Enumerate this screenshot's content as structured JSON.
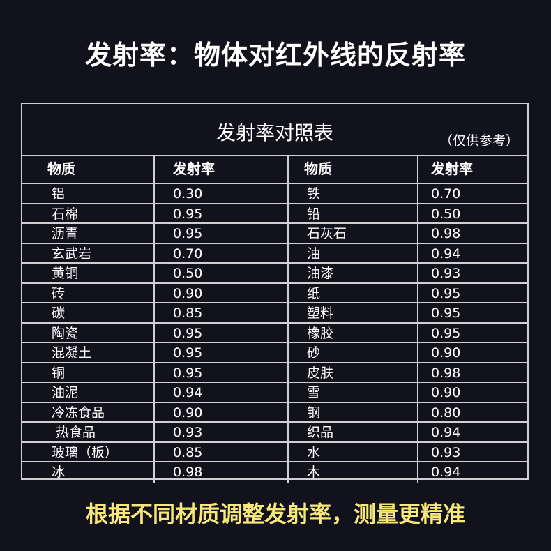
{
  "title": "发射率：物体对红外线的反射率",
  "table": {
    "caption": "发射率对照表",
    "note": "（仅供参考）",
    "headers": [
      "物质",
      "发射率",
      "物质",
      "发射率"
    ],
    "left": [
      {
        "material": "铝",
        "emissivity": "0.30"
      },
      {
        "material": "石棉",
        "emissivity": "0.95"
      },
      {
        "material": "沥青",
        "emissivity": "0.95"
      },
      {
        "material": "玄武岩",
        "emissivity": "0.70"
      },
      {
        "material": "黄铜",
        "emissivity": "0.50"
      },
      {
        "material": "砖",
        "emissivity": "0.90"
      },
      {
        "material": "碳",
        "emissivity": "0.85"
      },
      {
        "material": "陶瓷",
        "emissivity": "0.95"
      },
      {
        "material": "混凝土",
        "emissivity": "0.95"
      },
      {
        "material": "铜",
        "emissivity": "0.95"
      },
      {
        "material": "油泥",
        "emissivity": "0.94"
      },
      {
        "material": "冷冻食品",
        "emissivity": "0.90"
      },
      {
        "material": " 热食品",
        "emissivity": "0.93"
      },
      {
        "material": "玻璃（板）",
        "emissivity": "0.85"
      },
      {
        "material": "冰",
        "emissivity": "0.98"
      }
    ],
    "right": [
      {
        "material": "铁",
        "emissivity": "0.70"
      },
      {
        "material": "铅",
        "emissivity": "0.50"
      },
      {
        "material": "石灰石",
        "emissivity": "0.98"
      },
      {
        "material": "油",
        "emissivity": "0.94"
      },
      {
        "material": "油漆",
        "emissivity": "0.93"
      },
      {
        "material": "纸",
        "emissivity": "0.95"
      },
      {
        "material": "塑料",
        "emissivity": "0.95"
      },
      {
        "material": "橡胶",
        "emissivity": "0.95"
      },
      {
        "material": "砂",
        "emissivity": "0.90"
      },
      {
        "material": "皮肤",
        "emissivity": "0.98"
      },
      {
        "material": "雪",
        "emissivity": "0.90"
      },
      {
        "material": "钢",
        "emissivity": "0.80"
      },
      {
        "material": "织品",
        "emissivity": "0.94"
      },
      {
        "material": "水",
        "emissivity": "0.93"
      },
      {
        "material": "木",
        "emissivity": "0.94"
      }
    ]
  },
  "footer": "根据不同材质调整发射率，测量更精准",
  "colors": {
    "background": "#12121c",
    "footer_text": "#f8e87a",
    "grid_lines": "#cfcfd4"
  }
}
